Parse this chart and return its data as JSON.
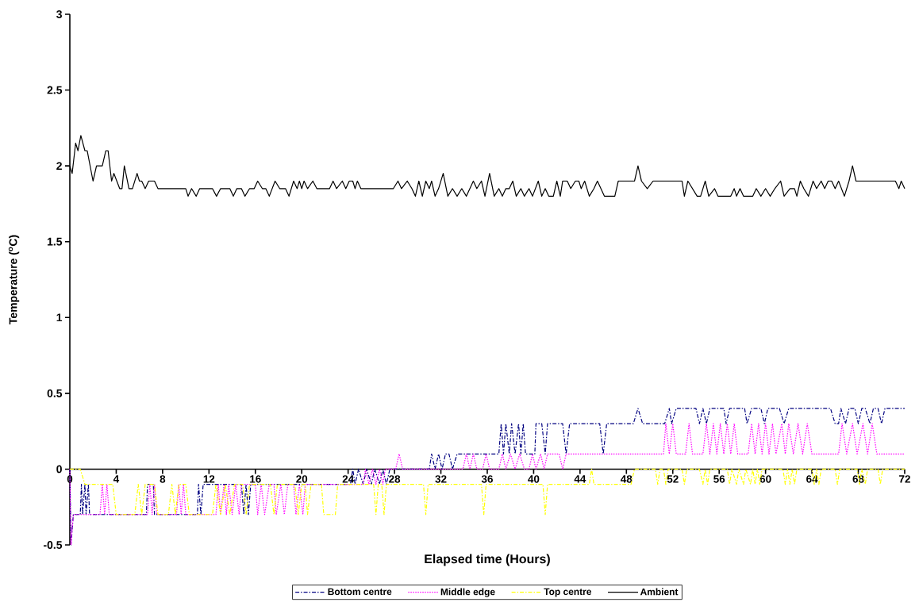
{
  "chart_data": {
    "type": "line",
    "xlabel": "Elapsed time (Hours)",
    "ylabel": "Temperature ($^{o}$C)",
    "xlim": [
      0,
      72
    ],
    "xticks": [
      0,
      4,
      8,
      12,
      16,
      20,
      24,
      28,
      32,
      36,
      40,
      44,
      48,
      52,
      56,
      60,
      64,
      68,
      72
    ],
    "ylim": [
      -0.5,
      3
    ],
    "yticks": [
      -0.5,
      0,
      0.5,
      1,
      1.5,
      2,
      2.5,
      3
    ],
    "legend": "bottom",
    "series": [
      {
        "name": "Bottom centre",
        "color": "#000080",
        "line_style": "dashed",
        "x": [
          0,
          0.1,
          0.3,
          0.9,
          1.0,
          1.1,
          1.3,
          1.4,
          1.6,
          1.7,
          6.6,
          6.7,
          7.2,
          7.3,
          11.0,
          11.1,
          11.3,
          11.5,
          14.8,
          15.0,
          15.2,
          15.4,
          15.6,
          24.2,
          24.4,
          24.6,
          24.9,
          25.3,
          25.6,
          26.0,
          26.3,
          26.7,
          27.0,
          27.3,
          27.6,
          31.0,
          31.2,
          31.5,
          31.8,
          32.1,
          32.4,
          32.7,
          33.0,
          33.4,
          37.0,
          37.2,
          37.4,
          37.6,
          37.9,
          38.1,
          38.4,
          38.7,
          38.9,
          39.1,
          39.3,
          40.1,
          40.2,
          40.7,
          41.0,
          41.2,
          42.5,
          42.8,
          43.1,
          45.7,
          46.0,
          46.3,
          48.6,
          49.0,
          49.4,
          51.3,
          51.7,
          51.9,
          52.3,
          54.0,
          54.3,
          54.6,
          54.9,
          55.2,
          56.4,
          56.6,
          56.9,
          58.2,
          58.4,
          58.8,
          59.6,
          59.9,
          60.2,
          61.2,
          61.6,
          62.0,
          65.6,
          66.0,
          66.3,
          66.5,
          66.9,
          67.2,
          67.7,
          68.0,
          68.3,
          68.6,
          69.0,
          69.3,
          69.7,
          70.0,
          70.3,
          72.0
        ],
        "values": [
          0,
          -0.5,
          -0.3,
          -0.3,
          -0.1,
          -0.3,
          -0.1,
          -0.3,
          -0.1,
          -0.3,
          -0.3,
          -0.1,
          -0.1,
          -0.3,
          -0.3,
          -0.1,
          -0.3,
          -0.1,
          -0.1,
          -0.3,
          -0.1,
          -0.3,
          -0.1,
          -0.1,
          0,
          -0.1,
          0,
          -0.1,
          0,
          -0.1,
          0,
          -0.1,
          0,
          -0.1,
          0,
          0,
          0.1,
          0,
          0.1,
          0,
          0.1,
          0.1,
          0,
          0.1,
          0.1,
          0.3,
          0.1,
          0.3,
          0.1,
          0.3,
          0.1,
          0.3,
          0.1,
          0.3,
          0.1,
          0.1,
          0.3,
          0.3,
          0.1,
          0.3,
          0.3,
          0.1,
          0.3,
          0.3,
          0.1,
          0.3,
          0.3,
          0.4,
          0.3,
          0.3,
          0.4,
          0.3,
          0.4,
          0.4,
          0.3,
          0.4,
          0.3,
          0.4,
          0.4,
          0.3,
          0.4,
          0.4,
          0.3,
          0.4,
          0.4,
          0.3,
          0.4,
          0.4,
          0.3,
          0.4,
          0.4,
          0.3,
          0.3,
          0.4,
          0.3,
          0.4,
          0.4,
          0.3,
          0.4,
          0.4,
          0.3,
          0.4,
          0.4,
          0.3,
          0.4,
          0.4
        ]
      },
      {
        "name": "Middle edge",
        "color": "#ff00ff",
        "line_style": "dotted",
        "x": [
          0,
          0.1,
          0.3,
          2.6,
          2.8,
          3.0,
          3.2,
          3.4,
          6.7,
          6.9,
          7.1,
          7.3,
          7.5,
          9.2,
          9.4,
          9.6,
          9.8,
          10.0,
          12.6,
          12.8,
          13.0,
          13.3,
          13.5,
          13.7,
          14.0,
          14.3,
          14.6,
          14.8,
          16.0,
          16.2,
          16.5,
          16.8,
          17.2,
          17.6,
          17.8,
          18.2,
          18.5,
          18.8,
          19.3,
          19.5,
          19.8,
          20.1,
          20.3,
          25.3,
          25.5,
          25.8,
          26.1,
          26.4,
          26.7,
          27.0,
          27.2,
          28.1,
          28.4,
          28.7,
          33.9,
          34.2,
          34.5,
          34.8,
          35.1,
          35.6,
          35.9,
          36.2,
          37.0,
          37.3,
          37.6,
          38.0,
          38.4,
          38.8,
          39.2,
          39.6,
          39.9,
          40.2,
          40.6,
          40.9,
          41.2,
          42.2,
          42.5,
          42.8,
          51.2,
          51.4,
          51.7,
          52.0,
          52.3,
          53.1,
          53.4,
          53.7,
          54.6,
          54.9,
          55.2,
          55.5,
          55.8,
          56.1,
          56.4,
          56.7,
          57.0,
          57.3,
          57.6,
          58.5,
          58.8,
          59.1,
          59.4,
          59.7,
          60.0,
          60.3,
          60.6,
          60.9,
          61.4,
          61.7,
          62.0,
          62.4,
          62.8,
          63.2,
          63.6,
          64.0,
          66.3,
          66.6,
          67.0,
          67.5,
          67.9,
          68.4,
          68.8,
          69.2,
          69.6,
          72.0
        ],
        "values": [
          0,
          -0.5,
          -0.3,
          -0.3,
          -0.1,
          -0.3,
          -0.1,
          -0.3,
          -0.3,
          -0.1,
          -0.3,
          -0.1,
          -0.3,
          -0.3,
          -0.1,
          -0.3,
          -0.1,
          -0.3,
          -0.3,
          -0.1,
          -0.3,
          -0.1,
          -0.3,
          -0.1,
          -0.3,
          -0.1,
          -0.3,
          -0.1,
          -0.1,
          -0.3,
          -0.1,
          -0.3,
          -0.1,
          -0.1,
          -0.3,
          -0.1,
          -0.3,
          -0.1,
          -0.1,
          -0.3,
          -0.1,
          -0.3,
          -0.1,
          -0.1,
          0,
          -0.1,
          0,
          -0.1,
          0,
          -0.1,
          0,
          0,
          0.1,
          0,
          0,
          0.1,
          0,
          0.1,
          0,
          0,
          0.1,
          0,
          0,
          0.1,
          0,
          0.1,
          0,
          0.1,
          0,
          0,
          0.1,
          0,
          0.1,
          0,
          0.1,
          0.1,
          0,
          0.1,
          0.1,
          0.3,
          0.1,
          0.3,
          0.1,
          0.1,
          0.3,
          0.1,
          0.1,
          0.3,
          0.1,
          0.3,
          0.1,
          0.3,
          0.1,
          0.3,
          0.1,
          0.3,
          0.1,
          0.1,
          0.3,
          0.1,
          0.3,
          0.1,
          0.3,
          0.1,
          0.3,
          0.1,
          0.3,
          0.1,
          0.3,
          0.1,
          0.3,
          0.1,
          0.3,
          0.1,
          0.1,
          0.3,
          0.1,
          0.3,
          0.1,
          0.3,
          0.1,
          0.3,
          0.1,
          0.1
        ]
      },
      {
        "name": "Top centre",
        "color": "#ffff00",
        "line_style": "dashed",
        "x": [
          0,
          0.9,
          1.3,
          3.7,
          4.0,
          5.6,
          5.9,
          6.2,
          6.5,
          7.3,
          7.6,
          8.5,
          8.8,
          9.1,
          9.4,
          10.0,
          10.3,
          12.3,
          12.6,
          13.0,
          13.4,
          13.8,
          14.2,
          14.9,
          15.2,
          15.5,
          17.3,
          17.6,
          17.9,
          19.4,
          19.7,
          20.0,
          20.3,
          20.5,
          20.8,
          21.7,
          21.9,
          22.9,
          23.1,
          26.2,
          26.4,
          26.6,
          26.9,
          27.1,
          27.3,
          30.5,
          30.7,
          30.9,
          35.5,
          35.7,
          35.9,
          40.8,
          41.0,
          41.2,
          44.8,
          45.0,
          45.2,
          48.4,
          48.7,
          50.5,
          50.7,
          50.9,
          51.2,
          51.4,
          51.6,
          52.8,
          53.0,
          53.2,
          54.3,
          54.6,
          54.8,
          55.0,
          55.2,
          56.7,
          56.9,
          57.1,
          57.5,
          57.7,
          58.1,
          58.3,
          58.7,
          58.9,
          59.1,
          59.3,
          59.5,
          59.7,
          61.5,
          61.7,
          61.9,
          62.1,
          62.3,
          62.5,
          62.7,
          64.0,
          64.2,
          64.4,
          64.6,
          64.8,
          66.0,
          66.2,
          66.4,
          67.9,
          68.1,
          68.3,
          68.6,
          68.8,
          69.7,
          69.9,
          70.1,
          72.0
        ],
        "values": [
          0,
          0,
          -0.1,
          -0.1,
          -0.3,
          -0.3,
          -0.1,
          -0.3,
          -0.1,
          -0.1,
          -0.3,
          -0.3,
          -0.1,
          -0.3,
          -0.1,
          -0.1,
          -0.3,
          -0.3,
          -0.1,
          -0.3,
          -0.1,
          -0.3,
          -0.1,
          -0.1,
          -0.3,
          -0.1,
          -0.1,
          -0.3,
          -0.1,
          -0.1,
          -0.3,
          -0.1,
          -0.1,
          -0.3,
          -0.1,
          -0.1,
          -0.3,
          -0.3,
          -0.1,
          -0.1,
          -0.3,
          -0.1,
          -0.1,
          -0.3,
          -0.1,
          -0.1,
          -0.3,
          -0.1,
          -0.1,
          -0.3,
          -0.1,
          -0.1,
          -0.3,
          -0.1,
          -0.1,
          0,
          -0.1,
          -0.1,
          0,
          0,
          -0.1,
          0,
          0,
          -0.1,
          0,
          0,
          -0.1,
          0,
          0,
          -0.1,
          0,
          -0.1,
          0,
          0,
          -0.1,
          0,
          -0.1,
          0,
          -0.1,
          0,
          -0.1,
          0,
          -0.1,
          0,
          -0.1,
          0,
          0,
          -0.1,
          0,
          -0.1,
          0,
          -0.1,
          0,
          0,
          -0.1,
          0,
          -0.1,
          0,
          0,
          -0.1,
          0,
          0,
          -0.1,
          0,
          -0.1,
          0,
          0,
          -0.1,
          0,
          0
        ]
      },
      {
        "name": "Ambient",
        "color": "#000000",
        "line_style": "solid",
        "x": [
          0,
          0.2,
          0.5,
          0.7,
          0.95,
          1.3,
          1.5,
          2.0,
          2.3,
          2.8,
          3.1,
          3.3,
          3.6,
          3.8,
          4.3,
          4.5,
          4.7,
          5.1,
          5.4,
          5.8,
          6.0,
          6.2,
          6.5,
          6.8,
          7.3,
          7.6,
          10.0,
          10.2,
          10.5,
          10.9,
          11.2,
          12.3,
          12.65,
          13.0,
          13.8,
          14.1,
          14.4,
          14.8,
          15.1,
          15.5,
          15.9,
          16.2,
          16.6,
          16.9,
          17.2,
          17.7,
          18.1,
          18.6,
          18.9,
          19.3,
          19.6,
          19.8,
          20.0,
          20.2,
          20.5,
          20.96,
          21.3,
          22.4,
          22.7,
          23.0,
          23.5,
          23.8,
          24.1,
          24.4,
          24.6,
          24.8,
          25.1,
          27.9,
          28.3,
          28.6,
          29.1,
          29.5,
          29.8,
          30.1,
          30.4,
          30.7,
          31.0,
          31.2,
          31.5,
          31.8,
          32.2,
          32.6,
          33.0,
          33.4,
          33.8,
          34.2,
          34.8,
          35.1,
          35.5,
          35.8,
          36.2,
          36.6,
          37.0,
          37.3,
          37.6,
          37.9,
          38.2,
          38.5,
          38.9,
          39.2,
          39.6,
          39.9,
          40.4,
          40.7,
          41.0,
          41.3,
          41.7,
          42.0,
          42.3,
          42.5,
          42.9,
          43.2,
          43.6,
          43.9,
          44.1,
          44.4,
          44.8,
          45.2,
          45.5,
          45.8,
          46.1,
          47.0,
          47.3,
          48.7,
          49.0,
          49.3,
          49.8,
          50.3,
          52.8,
          53.0,
          53.3,
          53.7,
          54.1,
          54.4,
          54.8,
          55.1,
          55.6,
          55.9,
          57.0,
          57.3,
          57.5,
          57.8,
          58.1,
          58.9,
          59.2,
          59.6,
          60.0,
          60.4,
          60.8,
          61.3,
          61.6,
          62.1,
          62.5,
          62.7,
          63.0,
          63.3,
          63.7,
          64.1,
          64.4,
          64.8,
          65.1,
          65.4,
          65.7,
          66.0,
          66.3,
          66.8,
          67.2,
          67.5,
          67.8,
          71.2,
          71.5,
          71.7,
          72.0
        ],
        "values": [
          2.0,
          1.95,
          2.15,
          2.1,
          2.2,
          2.1,
          2.1,
          1.9,
          2.0,
          2.0,
          2.1,
          2.1,
          1.9,
          1.95,
          1.85,
          1.85,
          2.0,
          1.85,
          1.85,
          1.95,
          1.9,
          1.9,
          1.85,
          1.9,
          1.9,
          1.85,
          1.85,
          1.8,
          1.85,
          1.8,
          1.85,
          1.85,
          1.8,
          1.85,
          1.85,
          1.8,
          1.85,
          1.85,
          1.8,
          1.85,
          1.85,
          1.9,
          1.85,
          1.85,
          1.8,
          1.9,
          1.85,
          1.85,
          1.8,
          1.9,
          1.85,
          1.9,
          1.85,
          1.9,
          1.85,
          1.9,
          1.85,
          1.85,
          1.9,
          1.85,
          1.9,
          1.85,
          1.9,
          1.9,
          1.85,
          1.9,
          1.85,
          1.85,
          1.9,
          1.85,
          1.9,
          1.85,
          1.8,
          1.9,
          1.8,
          1.9,
          1.85,
          1.9,
          1.8,
          1.85,
          1.95,
          1.8,
          1.85,
          1.8,
          1.85,
          1.8,
          1.9,
          1.85,
          1.9,
          1.8,
          1.95,
          1.8,
          1.85,
          1.8,
          1.85,
          1.85,
          1.9,
          1.8,
          1.85,
          1.8,
          1.85,
          1.8,
          1.9,
          1.8,
          1.85,
          1.8,
          1.8,
          1.9,
          1.8,
          1.9,
          1.9,
          1.85,
          1.9,
          1.9,
          1.85,
          1.9,
          1.8,
          1.85,
          1.9,
          1.85,
          1.8,
          1.8,
          1.9,
          1.9,
          2.0,
          1.9,
          1.85,
          1.9,
          1.9,
          1.8,
          1.9,
          1.85,
          1.8,
          1.8,
          1.9,
          1.8,
          1.85,
          1.8,
          1.8,
          1.85,
          1.8,
          1.85,
          1.8,
          1.8,
          1.85,
          1.8,
          1.85,
          1.8,
          1.85,
          1.9,
          1.8,
          1.85,
          1.85,
          1.8,
          1.9,
          1.85,
          1.8,
          1.9,
          1.85,
          1.9,
          1.85,
          1.9,
          1.9,
          1.85,
          1.9,
          1.8,
          1.9,
          2.0,
          1.9,
          1.9,
          1.85,
          1.9,
          1.85
        ]
      }
    ]
  }
}
